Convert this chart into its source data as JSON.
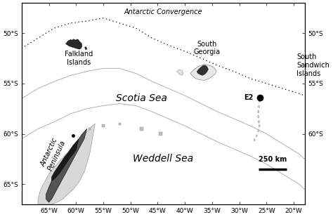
{
  "lon_min": -70,
  "lon_max": -18,
  "lat_min": -67,
  "lat_max": -47,
  "lon_ticks": [
    -65,
    -60,
    -55,
    -50,
    -45,
    -40,
    -35,
    -30,
    -25,
    -20
  ],
  "lat_ticks": [
    -50,
    -55,
    -60,
    -65
  ],
  "lon_tick_labels": [
    "65°W",
    "60°W",
    "55°W",
    "50°W",
    "45°W",
    "40°W",
    "35°W",
    "30°W",
    "25°W",
    "20°W"
  ],
  "lat_tick_labels_left": [
    "50°S",
    "55°S",
    "60°S",
    "65°S"
  ],
  "lat_tick_labels_right": [
    "50°S",
    "55°S",
    "60°S"
  ],
  "sea_color": "#ffffff",
  "E2_lon": -26.15,
  "E2_lat": -56.4,
  "antarctic_convergence_lons": [
    -70,
    -67,
    -64,
    -61,
    -58,
    -55,
    -52,
    -49,
    -46,
    -43,
    -40,
    -37,
    -34,
    -31,
    -28,
    -25,
    -22,
    -19,
    -18
  ],
  "antarctic_convergence_lats": [
    -51.5,
    -50.5,
    -49.5,
    -49.0,
    -48.8,
    -48.5,
    -49.0,
    -49.5,
    -50.5,
    -51.2,
    -51.8,
    -52.5,
    -53.2,
    -53.8,
    -54.5,
    -55.0,
    -55.5,
    -56.0,
    -56.2
  ],
  "shelf1_lons": [
    -70,
    -67,
    -64,
    -61,
    -58,
    -55,
    -52,
    -49,
    -46,
    -43,
    -40,
    -37,
    -34,
    -31,
    -28,
    -25,
    -22,
    -19,
    -18
  ],
  "shelf1_lats": [
    -56.5,
    -55.5,
    -54.8,
    -54.2,
    -53.8,
    -53.5,
    -53.5,
    -54.0,
    -54.8,
    -55.5,
    -56.2,
    -57.0,
    -57.8,
    -58.5,
    -59.2,
    -60.0,
    -61.0,
    -62.0,
    -62.5
  ],
  "shelf2_lons": [
    -70,
    -67,
    -64,
    -61,
    -58,
    -55,
    -52,
    -49,
    -46,
    -43,
    -40,
    -37,
    -34,
    -31,
    -28,
    -25,
    -22,
    -19,
    -18
  ],
  "shelf2_lats": [
    -60.5,
    -59.5,
    -58.8,
    -58.0,
    -57.5,
    -57.2,
    -57.0,
    -57.2,
    -57.8,
    -58.5,
    -59.2,
    -60.0,
    -60.8,
    -61.5,
    -62.2,
    -63.0,
    -64.0,
    -65.0,
    -65.5
  ],
  "labels": {
    "Antarctic Convergence": {
      "lon": -44,
      "lat": -47.8,
      "fontsize": 7,
      "style": "italic",
      "ha": "center"
    },
    "Falkland Islands": {
      "lon": -59.5,
      "lat": -52.5,
      "fontsize": 7,
      "style": "normal",
      "ha": "center"
    },
    "South Georgia": {
      "lon": -36.0,
      "lat": -51.7,
      "fontsize": 7,
      "style": "normal",
      "ha": "center"
    },
    "South Sandwich Islands": {
      "lon": -19.8,
      "lat": -53.3,
      "fontsize": 7,
      "style": "normal",
      "ha": "left"
    },
    "E2": {
      "lon": -27.3,
      "lat": -56.4,
      "fontsize": 7,
      "style": "normal",
      "ha": "right"
    },
    "Scotia Sea": {
      "lon": -48,
      "lat": -56.5,
      "fontsize": 10,
      "style": "italic",
      "ha": "center"
    },
    "Weddell Sea": {
      "lon": -44,
      "lat": -62.5,
      "fontsize": 10,
      "style": "italic",
      "ha": "center"
    },
    "Antarctic Peninsula": {
      "lon": -63.5,
      "lat": -62.0,
      "fontsize": 7,
      "style": "italic",
      "ha": "center",
      "rotation": 65
    }
  }
}
